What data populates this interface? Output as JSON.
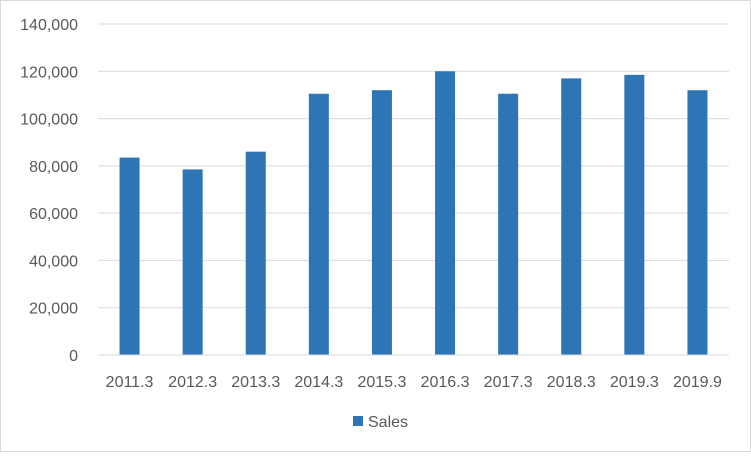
{
  "chart_data": {
    "type": "bar",
    "categories": [
      "2011.3",
      "2012.3",
      "2013.3",
      "2014.3",
      "2015.3",
      "2016.3",
      "2017.3",
      "2018.3",
      "2019.3",
      "2019.9"
    ],
    "series": [
      {
        "name": "Sales",
        "color": "#2e75b6",
        "values": [
          83500,
          78500,
          86000,
          110500,
          112000,
          120000,
          110500,
          117000,
          118500,
          112000
        ]
      }
    ],
    "ylim": [
      0,
      140000
    ],
    "yticks": [
      0,
      20000,
      40000,
      60000,
      80000,
      100000,
      120000,
      140000
    ],
    "ytick_labels": [
      "0",
      "20,000",
      "40,000",
      "60,000",
      "80,000",
      "100,000",
      "120,000",
      "140,000"
    ],
    "grid": true,
    "legend_position": "bottom",
    "title": "",
    "xlabel": "",
    "ylabel": ""
  }
}
